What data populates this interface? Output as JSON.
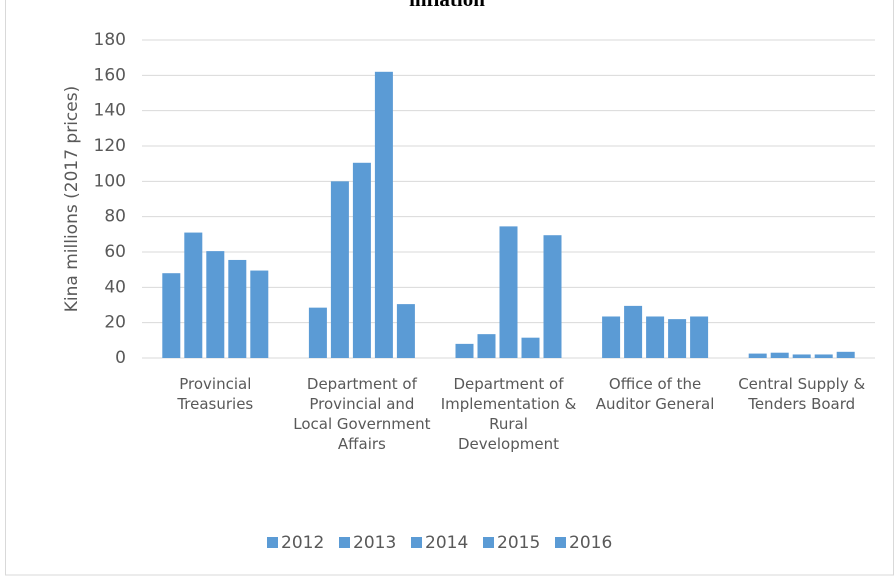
{
  "chart_data": {
    "type": "bar",
    "title": "inflation",
    "y_label": "Kina millions (2017 prices)",
    "categories": [
      "Provincial Treasuries",
      "Department of Provincial and Local Government Affairs",
      "Department of Implementation & Rural Development",
      "Office of the Auditor General",
      "Central Supply & Tenders Board"
    ],
    "series": [
      {
        "name": "2012",
        "color": "#5b9bd5",
        "values": [
          48,
          28.5,
          8,
          23.5,
          2.5
        ]
      },
      {
        "name": "2013",
        "color": "#5b9bd5",
        "values": [
          71,
          100,
          13.5,
          29.5,
          3
        ]
      },
      {
        "name": "2014",
        "color": "#5b9bd5",
        "values": [
          60.5,
          110.5,
          74.5,
          23.5,
          2
        ]
      },
      {
        "name": "2015",
        "color": "#5b9bd5",
        "values": [
          55.5,
          162,
          11.5,
          22,
          2
        ]
      },
      {
        "name": "2016",
        "color": "#5b9bd5",
        "values": [
          49.5,
          30.5,
          69.5,
          23.5,
          3.5
        ]
      }
    ],
    "ylim": [
      0,
      180
    ],
    "yticks": [
      0,
      20,
      40,
      60,
      80,
      100,
      120,
      140,
      160,
      180
    ],
    "grid": true,
    "legend": "bottom"
  }
}
